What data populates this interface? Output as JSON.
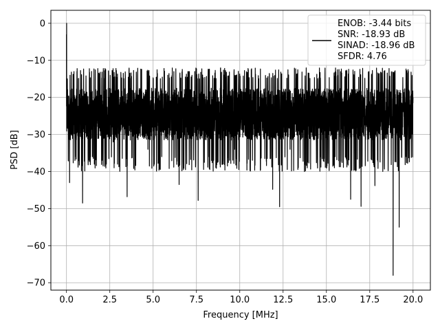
{
  "chart_data": {
    "type": "line",
    "title": "",
    "xlabel": "Frequency [MHz]",
    "ylabel": "PSD [dB]",
    "xlim": [
      -0.9,
      21.0
    ],
    "ylim": [
      -72.0,
      3.5
    ],
    "xticks": [
      0.0,
      2.5,
      5.0,
      7.5,
      10.0,
      12.5,
      15.0,
      17.5,
      20.0
    ],
    "xtick_labels": [
      "0.0",
      "2.5",
      "5.0",
      "7.5",
      "10.0",
      "12.5",
      "15.0",
      "17.5",
      "20.0"
    ],
    "yticks": [
      0,
      -10,
      -20,
      -30,
      -40,
      -50,
      -60,
      -70
    ],
    "ytick_labels": [
      "0",
      "−10",
      "−20",
      "−30",
      "−40",
      "−50",
      "−60",
      "−70"
    ],
    "grid": true,
    "legend_placement": "top-right",
    "legend_lines": [
      "ENOB: -3.44 bits",
      "SNR: -18.93 dB",
      "SINAD: -18.96 dB",
      "SFDR: 4.76"
    ],
    "series": [
      {
        "color": "#000000",
        "noise_floor_db": -24.5,
        "noise_top_db": -14.0,
        "noise_bottom_db": -36.0,
        "x": [
          0.0,
          0.01,
          0.03,
          0.05,
          0.08,
          0.12,
          0.18,
          0.22,
          0.3,
          0.4,
          0.5,
          0.6,
          0.7,
          0.8,
          0.93,
          1.1,
          1.3,
          1.5,
          1.7,
          1.9,
          2.1,
          2.3,
          2.5,
          2.7,
          2.9,
          3.1,
          3.3,
          3.5,
          3.7,
          3.9,
          4.1,
          4.3,
          4.5,
          4.7,
          4.9,
          5.1,
          5.3,
          5.5,
          5.7,
          5.9,
          6.1,
          6.3,
          6.5,
          6.7,
          6.9,
          7.1,
          7.3,
          7.6,
          7.8,
          8.0,
          8.2,
          8.4,
          8.7,
          8.9,
          9.1,
          9.3,
          9.5,
          9.7,
          9.9,
          10.1,
          10.3,
          10.5,
          10.7,
          10.9,
          11.1,
          11.3,
          11.5,
          11.7,
          11.9,
          12.1,
          12.3,
          12.5,
          12.7,
          12.9,
          13.1,
          13.3,
          13.5,
          13.7,
          13.9,
          14.1,
          14.3,
          14.5,
          14.7,
          14.9,
          15.1,
          15.3,
          15.5,
          15.7,
          15.9,
          16.1,
          16.4,
          16.6,
          16.8,
          17.0,
          17.2,
          17.4,
          17.6,
          17.8,
          18.0,
          18.2,
          18.4,
          18.6,
          18.85,
          19.0,
          19.2,
          19.4,
          19.6,
          19.8,
          20.0
        ],
        "y": [
          -3,
          0,
          -20,
          -15,
          -25,
          -28,
          -43,
          -18,
          -30,
          -20,
          -36,
          -18,
          -28,
          -24,
          -48.5,
          -26,
          -22,
          -36,
          -20,
          -28,
          -30,
          -38,
          -22,
          -32,
          -26,
          -20,
          -28,
          -46.8,
          -24,
          -30,
          -22,
          -26,
          -20,
          -34,
          -22,
          -28,
          -26,
          -36,
          -20,
          -24,
          -30,
          -26,
          -43.5,
          -22,
          -28,
          -25,
          -20,
          -47.8,
          -24,
          -28,
          -20,
          -36,
          -24,
          -30,
          -22,
          -20,
          -28,
          -34,
          -22,
          -26,
          -30,
          -24,
          -28,
          -22,
          -26,
          -24,
          -20,
          -30,
          -44.8,
          -26,
          -49.5,
          -22,
          -28,
          -34,
          -24,
          -30,
          -26,
          -22,
          -28,
          -24,
          -30,
          -22,
          -26,
          -28,
          -24,
          -30,
          -36,
          -22,
          -26,
          -28,
          -47.5,
          -24,
          -30,
          -49.4,
          -26,
          -22,
          -30,
          -43.8,
          -24,
          -28,
          -30,
          -26,
          -68,
          -24,
          -55,
          -28,
          -36,
          -22,
          -20
        ]
      }
    ]
  }
}
